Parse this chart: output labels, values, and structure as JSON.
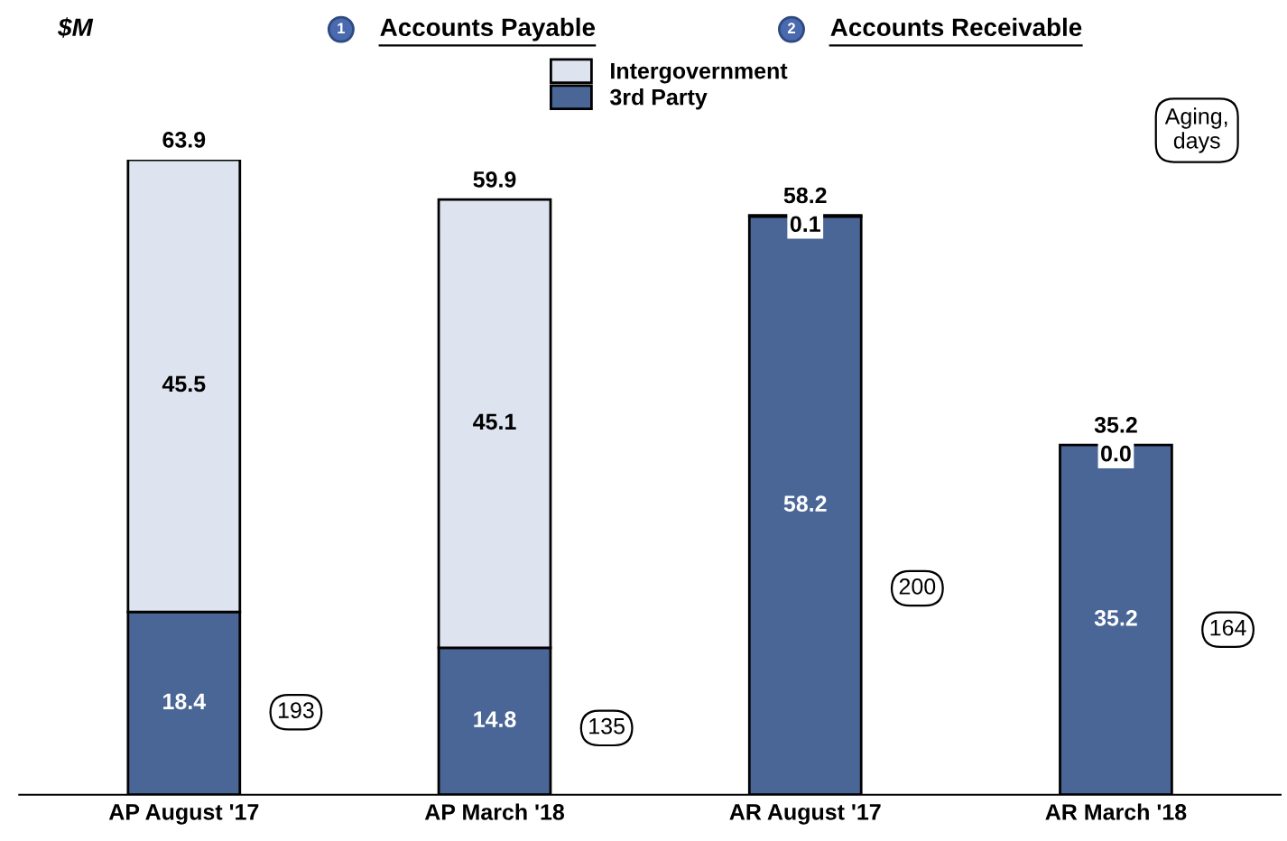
{
  "chart_data": {
    "type": "bar",
    "stacked": true,
    "ylabel": "$M",
    "categories": [
      "AP August '17",
      "AP March '18",
      "AR August '17",
      "AR March '18"
    ],
    "series": [
      {
        "name": "3rd Party",
        "color": "#4a6696",
        "values": [
          18.4,
          14.8,
          58.2,
          35.2
        ],
        "value_labels": [
          "18.4",
          "14.8",
          "58.2",
          "35.2"
        ]
      },
      {
        "name": "Intergovernment",
        "color": "#dee4ef",
        "values": [
          45.5,
          45.1,
          0.1,
          0.0
        ],
        "value_labels": [
          "45.5",
          "45.1",
          "0.1",
          "0.0"
        ]
      }
    ],
    "totals": [
      "63.9",
      "59.9",
      "58.2",
      "35.2"
    ],
    "legend": "top",
    "grid": false,
    "annotations": [
      "1",
      "Accounts Payable",
      "2",
      "Accounts Receivable",
      "Aging,\ndays",
      "193",
      "135",
      "200",
      "164"
    ]
  }
}
